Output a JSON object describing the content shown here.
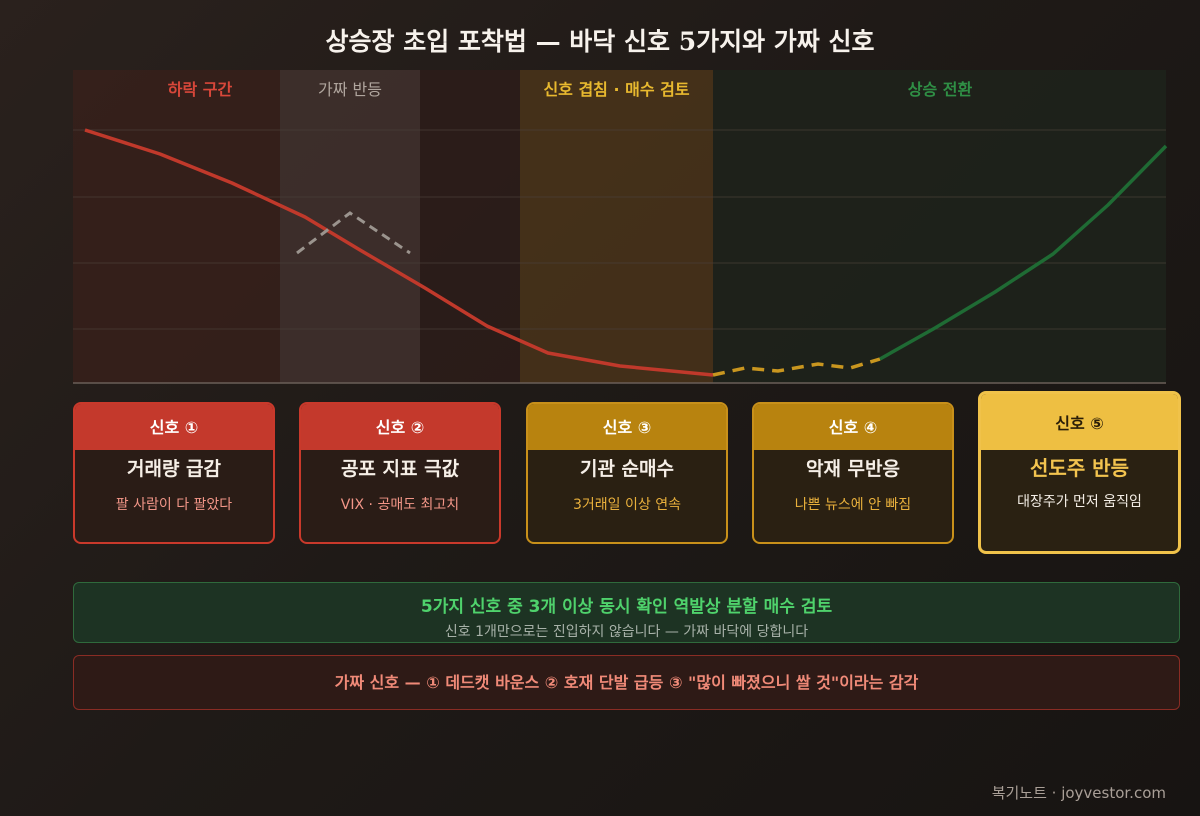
{
  "title": "상승장 초입 포착법 — 바닥 신호 5가지와 가짜 신호",
  "zones": [
    {
      "label": "하락 구간",
      "color": "#d8473a"
    },
    {
      "label": "가짜 반등",
      "color": "#b0a69e"
    },
    {
      "label": "신호 겹침 · 매수 검토",
      "color": "#e8b92f"
    },
    {
      "label": "상승 전환",
      "color": "#2f8f45"
    }
  ],
  "signals": [
    {
      "head": "신호 ①",
      "title": "거래량 급감",
      "desc": "팔 사람이 다 팔았다",
      "style": "red"
    },
    {
      "head": "신호 ②",
      "title": "공포 지표 극값",
      "desc": "VIX · 공매도 최고치",
      "style": "red"
    },
    {
      "head": "신호 ③",
      "title": "기관 순매수",
      "desc": "3거래일 이상 연속",
      "style": "amber"
    },
    {
      "head": "신호 ④",
      "title": "악재 무반응",
      "desc": "나쁜 뉴스에 안 빠짐",
      "style": "amber"
    },
    {
      "head": "신호 ⑤",
      "title": "선도주 반등",
      "desc": "대장주가 먼저 움직임",
      "style": "gold"
    }
  ],
  "rule": {
    "main": "5가지 신호 중 3개 이상 동시 확인 역발상 분할 매수 검토",
    "sub": "신호 1개만으로는 진입하지 않습니다 — 가짜 바닥에 당합니다"
  },
  "fake_signals": "가짜 신호 — ① 데드캣 바운스 ② 호재 단발 급등 ③ \"많이 빠졌으니 쌀 것\"이라는 감각",
  "footer": "복기노트 · joyvestor.com",
  "colors": {
    "decline": "#c0392b",
    "bottom": "#c9961f",
    "rise": "#1f6b34",
    "fake_bounce": "#9b948e"
  }
}
